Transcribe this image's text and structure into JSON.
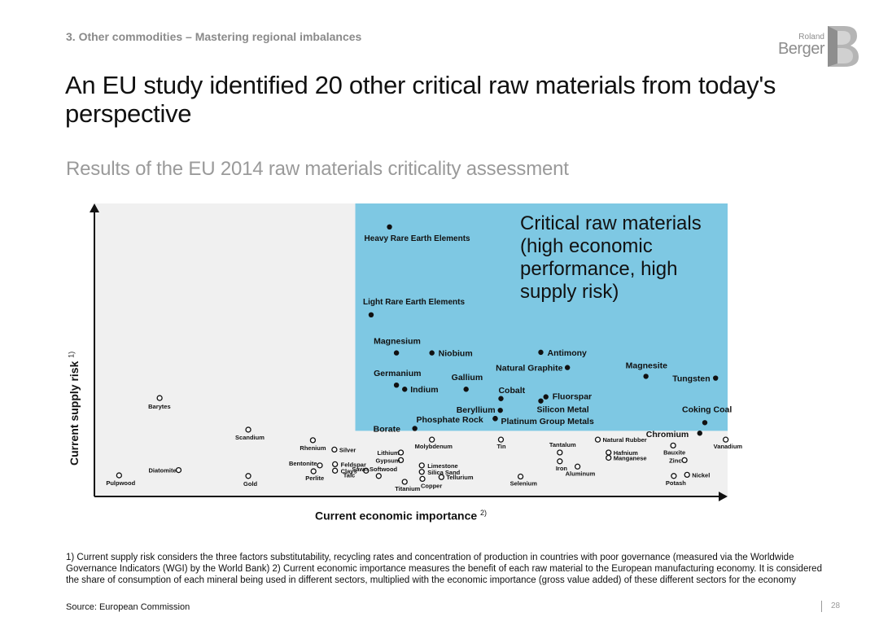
{
  "header": {
    "section": "3. Other commodities – Mastering regional imbalances",
    "title": "An EU study identified 20 other critical raw materials from today's perspective",
    "subtitle": "Results of the EU 2014 raw materials criticality assessment"
  },
  "logo": {
    "line1": "Roland",
    "line2": "Berger",
    "colors": {
      "text": "#8d8d8d",
      "mark": "#b3b3b3"
    }
  },
  "chart_data": {
    "type": "scatter",
    "xlabel": "Current economic importance",
    "xlabel_note": "2)",
    "ylabel": "Current supply risk",
    "ylabel_note": "1)",
    "xlim": [
      0,
      10
    ],
    "ylim": [
      0,
      5
    ],
    "region": {
      "label": "Critical raw materials (high economic performance, high supply risk)",
      "label_lines": [
        "Critical raw materials",
        "(high economic",
        "performance, high",
        "supply risk)"
      ],
      "x_from": 4.12,
      "y_from": 1.12,
      "color": "#7ec8e3"
    },
    "background_color": "#f0f0f0",
    "series": [
      {
        "name": "Critical raw materials",
        "marker": "filled",
        "points": [
          {
            "label": "Heavy Rare Earth Elements",
            "x": 4.66,
            "y": 4.6
          },
          {
            "label": "Light Rare Earth Elements",
            "x": 4.37,
            "y": 3.1
          },
          {
            "label": "Magnesium",
            "x": 4.77,
            "y": 2.45
          },
          {
            "label": "Niobium",
            "x": 5.33,
            "y": 2.45
          },
          {
            "label": "Antimony",
            "x": 7.05,
            "y": 2.46
          },
          {
            "label": "Natural Graphite",
            "x": 7.47,
            "y": 2.2
          },
          {
            "label": "Magnesite",
            "x": 8.71,
            "y": 2.05
          },
          {
            "label": "Tungsten",
            "x": 9.81,
            "y": 2.02
          },
          {
            "label": "Germanium",
            "x": 4.77,
            "y": 1.9
          },
          {
            "label": "Indium",
            "x": 4.9,
            "y": 1.83
          },
          {
            "label": "Gallium",
            "x": 5.87,
            "y": 1.83
          },
          {
            "label": "Cobalt",
            "x": 6.42,
            "y": 1.67
          },
          {
            "label": "Fluorspar",
            "x": 7.13,
            "y": 1.7
          },
          {
            "label": "Beryllium",
            "x": 6.41,
            "y": 1.47
          },
          {
            "label": "Silicon Metal",
            "x": 7.05,
            "y": 1.63
          },
          {
            "label": "Phosphate Rock",
            "x": 6.33,
            "y": 1.33
          },
          {
            "label": "Platinum Group Metals",
            "x": 6.33,
            "y": 1.33
          },
          {
            "label": "Borate",
            "x": 5.06,
            "y": 1.16
          },
          {
            "label": "Coking Coal",
            "x": 9.64,
            "y": 1.26
          },
          {
            "label": "Chromium",
            "x": 9.56,
            "y": 1.08
          }
        ]
      },
      {
        "name": "Other raw materials",
        "marker": "open",
        "points": [
          {
            "label": "Barytes",
            "x": 1.03,
            "y": 1.68
          },
          {
            "label": "Scandium",
            "x": 2.43,
            "y": 1.14
          },
          {
            "label": "Rhenium",
            "x": 3.45,
            "y": 0.96
          },
          {
            "label": "Silver",
            "x": 3.79,
            "y": 0.8
          },
          {
            "label": "Lithium",
            "x": 4.84,
            "y": 0.75
          },
          {
            "label": "Gypsum",
            "x": 4.84,
            "y": 0.62
          },
          {
            "label": "Molybdenum",
            "x": 5.33,
            "y": 0.97
          },
          {
            "label": "Tin",
            "x": 6.42,
            "y": 0.97
          },
          {
            "label": "Natural Rubber",
            "x": 7.95,
            "y": 0.97
          },
          {
            "label": "Vanadium",
            "x": 9.97,
            "y": 0.97
          },
          {
            "label": "Tantalum",
            "x": 7.35,
            "y": 0.75
          },
          {
            "label": "Hafnium",
            "x": 8.12,
            "y": 0.75
          },
          {
            "label": "Manganese",
            "x": 8.12,
            "y": 0.66
          },
          {
            "label": "Bauxite",
            "x": 9.14,
            "y": 0.87
          },
          {
            "label": "Zinc",
            "x": 9.32,
            "y": 0.62
          },
          {
            "label": "Iron",
            "x": 7.35,
            "y": 0.6
          },
          {
            "label": "Aluminum",
            "x": 7.63,
            "y": 0.51
          },
          {
            "label": "Bentonite",
            "x": 3.56,
            "y": 0.53
          },
          {
            "label": "Feldspar",
            "x": 3.8,
            "y": 0.55
          },
          {
            "label": "Perlite",
            "x": 3.46,
            "y": 0.43
          },
          {
            "label": "Clays",
            "x": 3.8,
            "y": 0.44
          },
          {
            "label": "Talc",
            "x": 4.29,
            "y": 0.44
          },
          {
            "label": "Sawn Softwood",
            "x": 4.49,
            "y": 0.35
          },
          {
            "label": "Limestone",
            "x": 5.17,
            "y": 0.53
          },
          {
            "label": "Silica Sand",
            "x": 5.17,
            "y": 0.42
          },
          {
            "label": "Tellurium",
            "x": 5.48,
            "y": 0.33
          },
          {
            "label": "Titanium",
            "x": 4.9,
            "y": 0.25
          },
          {
            "label": "Copper",
            "x": 5.18,
            "y": 0.3
          },
          {
            "label": "Selenium",
            "x": 6.73,
            "y": 0.34
          },
          {
            "label": "Nickel",
            "x": 9.36,
            "y": 0.37
          },
          {
            "label": "Potash",
            "x": 9.15,
            "y": 0.35
          },
          {
            "label": "Diatomite",
            "x": 1.33,
            "y": 0.45
          },
          {
            "label": "Gold",
            "x": 2.43,
            "y": 0.35
          },
          {
            "label": "Pulpwood",
            "x": 0.39,
            "y": 0.36
          }
        ]
      }
    ]
  },
  "footnotes": "1) Current supply risk considers the three factors substitutability, recycling rates and concentration of production in countries with poor governance (measured via the Worldwide Governance Indicators (WGI) by the World Bank) 2) Current economic importance measures the benefit of each raw material to the European manufacturing economy. It is considered the share of consumption of each mineral being used in different sectors, multiplied with the economic importance (gross value added) of these different sectors for the economy",
  "source": "Source: European Commission",
  "page_number": "28"
}
